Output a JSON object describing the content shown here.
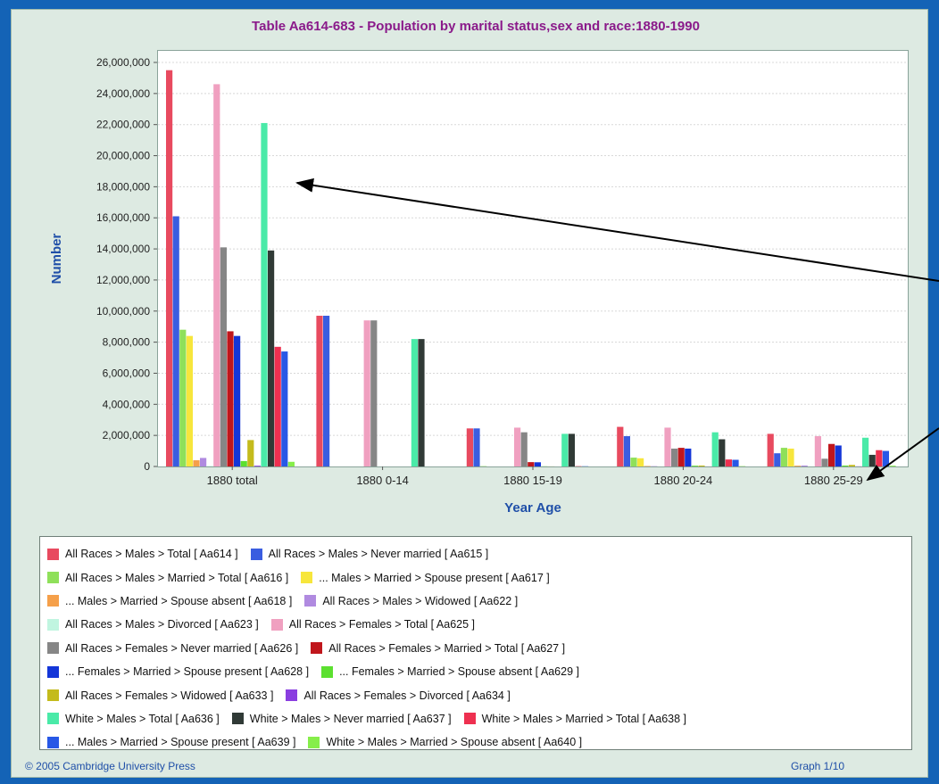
{
  "title": "Table Aa614-683 - Population by marital status,sex and race:1880-1990",
  "footer": {
    "copyright": "© 2005 Cambridge University Press",
    "page": "Graph 1/10"
  },
  "chart_data": {
    "type": "bar",
    "title": "Table Aa614-683 - Population by marital status,sex and race:1880-1990",
    "xlabel": "Year Age",
    "ylabel": "Number",
    "ylim": [
      0,
      26000000
    ],
    "yticks": [
      "0",
      "2,000,000",
      "4,000,000",
      "6,000,000",
      "8,000,000",
      "10,000,000",
      "12,000,000",
      "14,000,000",
      "16,000,000",
      "18,000,000",
      "20,000,000",
      "22,000,000",
      "24,000,000",
      "26,000,000"
    ],
    "grid": true,
    "legend_position": "bottom",
    "categories": [
      "1880 total",
      "1880 0-14",
      "1880 15-19",
      "1880 20-24",
      "1880 25-29"
    ],
    "series": [
      {
        "name": "All Races > Males > Total [ Aa614 ]",
        "color": "#e84a5f",
        "values": [
          25500000,
          9700000,
          2450000,
          2550000,
          2100000
        ]
      },
      {
        "name": "All Races > Males > Never married [ Aa615 ]",
        "color": "#3a5de0",
        "values": [
          16100000,
          9700000,
          2450000,
          1950000,
          850000
        ]
      },
      {
        "name": "All Races > Males > Married > Total [ Aa616 ]",
        "color": "#8fe05a",
        "values": [
          8800000,
          0,
          20000,
          570000,
          1200000
        ]
      },
      {
        "name": "... Males > Married > Spouse present [ Aa617 ]",
        "color": "#f7e63c",
        "values": [
          8400000,
          0,
          0,
          530000,
          1150000
        ]
      },
      {
        "name": "... Males > Married > Spouse absent [ Aa618 ]",
        "color": "#f5a04a",
        "values": [
          400000,
          0,
          0,
          30000,
          50000
        ]
      },
      {
        "name": "All Races > Males > Widowed [ Aa622 ]",
        "color": "#b08ae0",
        "values": [
          550000,
          0,
          0,
          20000,
          60000
        ]
      },
      {
        "name": "All Races > Males > Divorced [ Aa623 ]",
        "color": "#c0f5e0",
        "values": [
          30000,
          0,
          0,
          0,
          5000
        ]
      },
      {
        "name": "All Races > Females > Total [ Aa625 ]",
        "color": "#f0a0c0",
        "values": [
          24600000,
          9400000,
          2500000,
          2500000,
          1950000
        ]
      },
      {
        "name": "All Races > Females > Never married [ Aa626 ]",
        "color": "#868686",
        "values": [
          14100000,
          9400000,
          2200000,
          1150000,
          500000
        ]
      },
      {
        "name": "All Races > Females > Married > Total [ Aa627 ]",
        "color": "#c0161c",
        "values": [
          8700000,
          0,
          280000,
          1200000,
          1450000
        ]
      },
      {
        "name": "... Females > Married > Spouse present [ Aa628 ]",
        "color": "#1436d8",
        "values": [
          8400000,
          0,
          270000,
          1150000,
          1350000
        ]
      },
      {
        "name": "... Females > Married > Spouse absent [ Aa629 ]",
        "color": "#5ce030",
        "values": [
          350000,
          0,
          10000,
          50000,
          60000
        ]
      },
      {
        "name": "All Races > Females > Widowed [ Aa633 ]",
        "color": "#c4bb1c",
        "values": [
          1700000,
          0,
          5000,
          60000,
          100000
        ]
      },
      {
        "name": "All Races > Females > Divorced [ Aa634 ]",
        "color": "#8a3ee0",
        "values": [
          50000,
          0,
          0,
          5000,
          10000
        ]
      },
      {
        "name": "White > Males > Total [ Aa636 ]",
        "color": "#4aeaa8",
        "values": [
          22100000,
          8200000,
          2100000,
          2200000,
          1850000
        ]
      },
      {
        "name": "White > Males > Never married [ Aa637 ]",
        "color": "#303a36",
        "values": [
          13900000,
          8200000,
          2100000,
          1750000,
          750000
        ]
      },
      {
        "name": "White > Males > Married > Total [ Aa638 ]",
        "color": "#ee3050",
        "values": [
          7700000,
          0,
          20000,
          450000,
          1050000
        ]
      },
      {
        "name": "... Males > Married > Spouse present [ Aa639 ]",
        "color": "#2858e6",
        "values": [
          7400000,
          0,
          15000,
          430000,
          1000000
        ]
      },
      {
        "name": "White > Males > Married > Spouse absent [ Aa640 ]",
        "color": "#86ee4a",
        "values": [
          300000,
          0,
          0,
          20000,
          50000
        ]
      }
    ]
  }
}
